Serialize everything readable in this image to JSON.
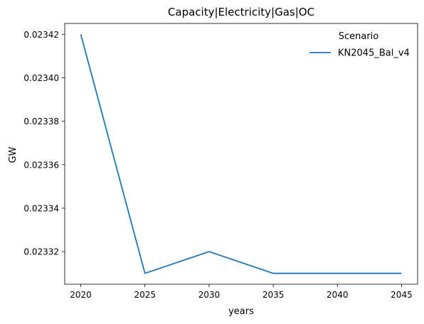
{
  "chart_data": {
    "type": "line",
    "title": "Capacity|Electricity|Gas|OC",
    "xlabel": "years",
    "ylabel": "GW",
    "x": [
      2020,
      2025,
      2030,
      2035,
      2040,
      2045
    ],
    "xticks": [
      "2020",
      "2025",
      "2030",
      "2035",
      "2040",
      "2045"
    ],
    "yticks": [
      "0.02332",
      "0.02334",
      "0.02336",
      "0.02338",
      "0.02340",
      "0.02342"
    ],
    "ytick_values": [
      0.02332,
      0.02334,
      0.02336,
      0.02338,
      0.0234,
      0.02342
    ],
    "xlim": [
      2018.75,
      2046.25
    ],
    "ylim": [
      0.023305,
      0.023425
    ],
    "grid": false,
    "legend": {
      "title": "Scenario",
      "placement": "top-right"
    },
    "series": [
      {
        "name": "KN2045_Bal_v4",
        "color": "#1f77b4",
        "values": [
          0.02342,
          0.02331,
          0.02332,
          0.02331,
          0.02331,
          0.02331
        ]
      }
    ]
  }
}
